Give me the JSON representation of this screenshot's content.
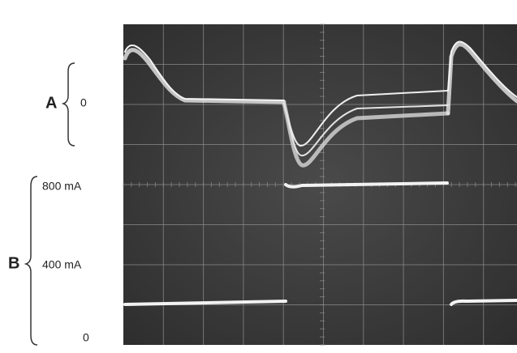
{
  "channel_a": {
    "name": "A",
    "zero_label": "0"
  },
  "channel_b": {
    "name": "B",
    "labels": [
      "800 mA",
      "400 mA",
      "0"
    ]
  }
}
